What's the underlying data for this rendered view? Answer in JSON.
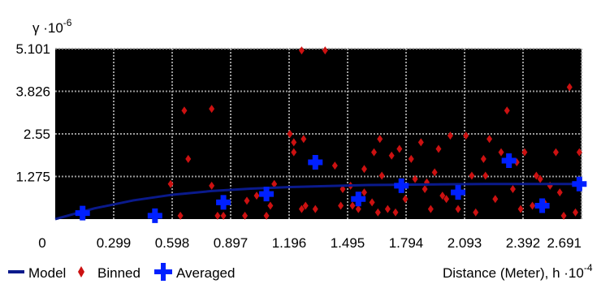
{
  "chart_data": {
    "type": "scatter",
    "title": "",
    "ylabel": "γ ·10",
    "ylabel_exp": "-6",
    "xlabel": "Distance (Meter), h ·10",
    "xlabel_exp": "-4",
    "xlim": [
      0,
      2.691
    ],
    "ylim": [
      0,
      5.101
    ],
    "x_ticks": [
      "0",
      "0.299",
      "0.598",
      "0.897",
      "1.196",
      "1.495",
      "1.794",
      "2.093",
      "2.392",
      "2.691"
    ],
    "y_ticks": [
      "1.275",
      "2.55",
      "3.826",
      "5.101"
    ],
    "grid": true,
    "legend_position": "bottom-left",
    "series": [
      {
        "name": "Model",
        "kind": "line",
        "color": "#0a1a8c",
        "x": [
          0,
          0.2,
          0.4,
          0.6,
          0.8,
          1.0,
          1.2,
          1.4,
          1.6,
          1.8,
          2.0,
          2.2,
          2.4,
          2.691
        ],
        "y": [
          0,
          0.32,
          0.56,
          0.73,
          0.84,
          0.91,
          0.96,
          0.99,
          1.02,
          1.03,
          1.04,
          1.05,
          1.05,
          1.05
        ]
      },
      {
        "name": "Binned",
        "kind": "diamond",
        "color": "#cc1111",
        "x": [
          0.59,
          0.64,
          0.68,
          0.66,
          0.8,
          0.8,
          0.83,
          0.86,
          0.97,
          0.98,
          1.03,
          1.08,
          1.1,
          1.12,
          1.2,
          1.22,
          1.22,
          1.26,
          1.26,
          1.27,
          1.28,
          1.33,
          1.38,
          1.43,
          1.46,
          1.47,
          1.51,
          1.52,
          1.55,
          1.58,
          1.62,
          1.63,
          1.65,
          1.67,
          1.7,
          1.72,
          1.76,
          1.79,
          1.82,
          1.84,
          1.87,
          1.89,
          1.92,
          1.94,
          1.96,
          2.0,
          2.02,
          2.06,
          2.1,
          2.13,
          2.15,
          2.19,
          2.22,
          2.25,
          2.28,
          2.31,
          2.34,
          2.38,
          2.4,
          2.44,
          2.48,
          2.5,
          2.53,
          2.56,
          2.6,
          2.63,
          2.66,
          2.68,
          1.58,
          1.66,
          1.74,
          1.9,
          1.98,
          2.2,
          2.36,
          2.46,
          2.58
        ],
        "y": [
          1.05,
          0.1,
          1.8,
          3.25,
          3.3,
          1.0,
          0.1,
          0.1,
          0.1,
          0.55,
          0.7,
          0.1,
          0.4,
          1.05,
          2.55,
          2.3,
          2.0,
          5.05,
          0.3,
          2.4,
          0.4,
          0.3,
          5.05,
          1.6,
          0.4,
          0.9,
          1.0,
          0.4,
          0.3,
          1.5,
          0.5,
          2.0,
          0.2,
          1.3,
          0.3,
          1.9,
          2.1,
          0.6,
          1.8,
          1.2,
          2.3,
          0.9,
          0.3,
          1.4,
          2.1,
          0.6,
          2.5,
          0.3,
          2.5,
          1.3,
          0.2,
          1.8,
          2.4,
          0.6,
          2.0,
          3.25,
          0.9,
          0.3,
          2.0,
          0.4,
          1.2,
          0.5,
          1.0,
          2.0,
          0.1,
          3.95,
          0.2,
          2.0,
          0.8,
          2.4,
          0.2,
          1.1,
          0.7,
          1.3,
          1.7,
          1.3,
          0.8
        ]
      },
      {
        "name": "Averaged",
        "kind": "plus",
        "color": "#0020ff",
        "x": [
          0.14,
          0.51,
          0.86,
          1.08,
          1.33,
          1.55,
          1.77,
          2.06,
          2.32,
          2.49,
          2.68
        ],
        "y": [
          0.18,
          0.1,
          0.5,
          0.75,
          1.7,
          0.6,
          1.0,
          0.8,
          1.75,
          0.4,
          1.05
        ]
      }
    ]
  }
}
